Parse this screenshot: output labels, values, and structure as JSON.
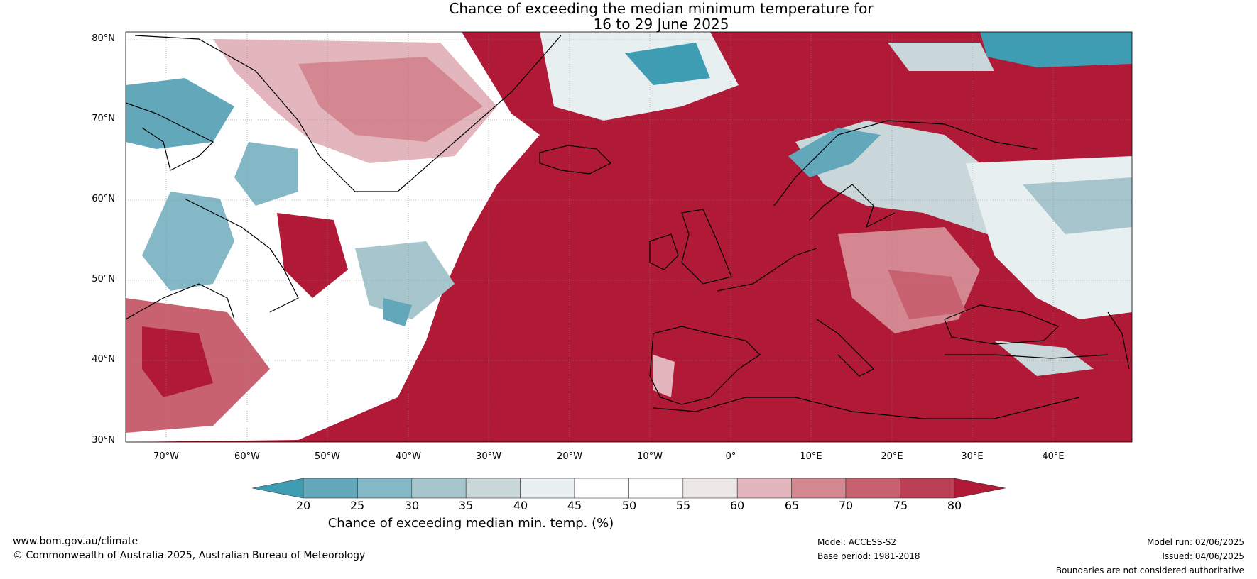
{
  "title_line1": "Chance of exceeding the median minimum temperature for",
  "title_line2": "16 to 29 June 2025",
  "lat_labels": [
    "80°N",
    "70°N",
    "60°N",
    "50°N",
    "40°N",
    "30°N"
  ],
  "lon_labels": [
    "70°W",
    "60°W",
    "50°W",
    "40°W",
    "30°W",
    "20°W",
    "10°W",
    "0°",
    "10°E",
    "20°E",
    "30°E",
    "40°E"
  ],
  "colorbar": {
    "ticks": [
      "20",
      "25",
      "30",
      "35",
      "40",
      "45",
      "50",
      "55",
      "60",
      "65",
      "70",
      "75",
      "80"
    ],
    "colors": [
      "#3e9db2",
      "#62a8ba",
      "#85b8c6",
      "#a7c5cd",
      "#c9d6da",
      "#e8eff1",
      "#ffffff",
      "#ffffff",
      "#ece6e7",
      "#e2b6bc",
      "#d48790",
      "#c86270",
      "#bc4054",
      "#b01a37"
    ],
    "label": "Chance of exceeding median min. temp. (%)"
  },
  "footer": {
    "website": "www.bom.gov.au/climate",
    "copyright": "© Commonwealth of Australia 2025, Australian Bureau of Meteorology",
    "model": "Model: ACCESS-S2",
    "base_period": "Base period: 1981-2018",
    "model_run": "Model run: 02/06/2025",
    "issued": "Issued: 04/06/2025",
    "disclaimer": "Boundaries are not considered authoritative"
  },
  "map_colors": {
    "warm": "#b01a37",
    "warm_mid": "#c86270",
    "warm_light": "#e2b6bc",
    "neutral": "#ffffff",
    "cool_light": "#c9d6da",
    "cool": "#62a8ba",
    "coast": "#000000",
    "border": "#808080"
  }
}
